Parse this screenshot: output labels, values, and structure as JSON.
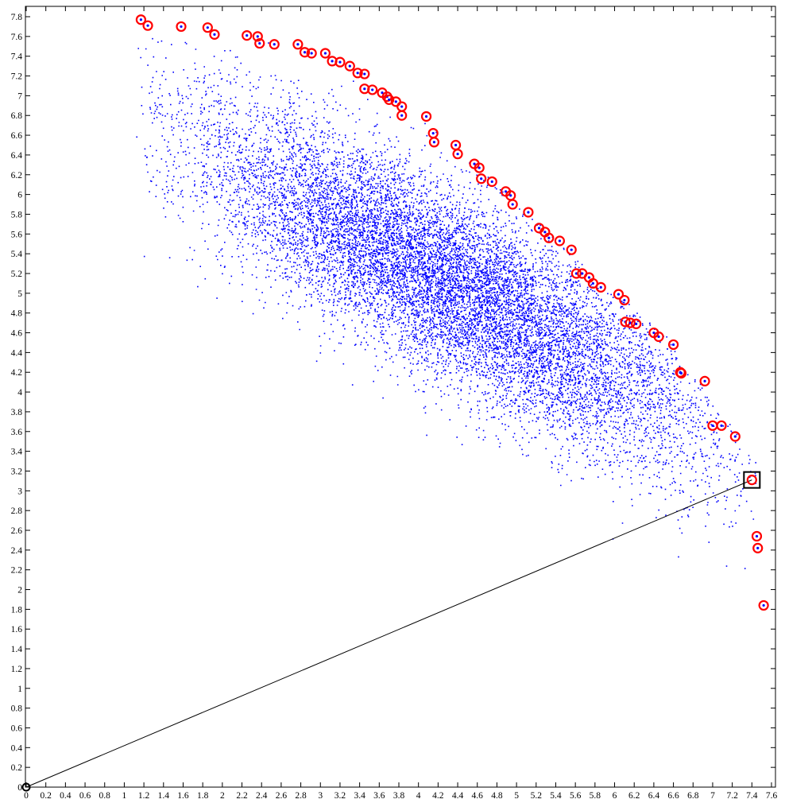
{
  "chart_data": {
    "type": "scatter",
    "title": "",
    "xlabel": "",
    "ylabel": "",
    "xlim": [
      0,
      7.6
    ],
    "ylim": [
      0,
      7.9
    ],
    "grid": false,
    "legend": "none",
    "x_ticks": [
      "0",
      "0.2",
      "0.4",
      "0.6",
      "0.8",
      "1",
      "1.2",
      "1.4",
      "1.6",
      "1.8",
      "2",
      "2.2",
      "2.4",
      "2.6",
      "2.8",
      "3",
      "3.2",
      "3.4",
      "3.6",
      "3.8",
      "4",
      "4.2",
      "4.4",
      "4.6",
      "4.8",
      "5",
      "5.2",
      "5.4",
      "5.6",
      "5.8",
      "6",
      "6.2",
      "6.4",
      "6.6",
      "6.8",
      "7",
      "7.2",
      "7.4",
      "7.6"
    ],
    "y_ticks": [
      "0",
      "0.2",
      "0.4",
      "0.6",
      "0.8",
      "1",
      "1.2",
      "1.4",
      "1.6",
      "1.8",
      "2",
      "2.2",
      "2.4",
      "2.6",
      "2.8",
      "3",
      "3.2",
      "3.4",
      "3.6",
      "3.8",
      "4",
      "4.2",
      "4.4",
      "4.6",
      "4.8",
      "5",
      "5.2",
      "5.4",
      "5.6",
      "5.8",
      "6",
      "6.2",
      "6.4",
      "6.6",
      "6.8",
      "7",
      "7.2",
      "7.4",
      "7.6",
      "7.8"
    ],
    "colors": {
      "cloud": "#0000ff",
      "frontier": "#ff0000",
      "selected": "#000000",
      "line": "#000000",
      "origin": "#000000"
    },
    "cloud_description": {
      "approx_points": 12000,
      "mean": [
        4.3,
        5.1
      ],
      "principal_axis_slope": -0.6,
      "upper_bound_curve": [
        [
          1.15,
          7.72
        ],
        [
          2.5,
          7.55
        ],
        [
          3.5,
          7.15
        ],
        [
          4.5,
          6.4
        ],
        [
          5.5,
          5.45
        ],
        [
          6.5,
          4.6
        ],
        [
          7.3,
          3.5
        ]
      ]
    },
    "frontier_points": [
      [
        1.17,
        7.77
      ],
      [
        1.24,
        7.71
      ],
      [
        1.58,
        7.7
      ],
      [
        1.85,
        7.69
      ],
      [
        1.92,
        7.62
      ],
      [
        2.25,
        7.61
      ],
      [
        2.36,
        7.6
      ],
      [
        2.38,
        7.53
      ],
      [
        2.53,
        7.52
      ],
      [
        2.77,
        7.52
      ],
      [
        2.84,
        7.44
      ],
      [
        2.91,
        7.43
      ],
      [
        3.05,
        7.43
      ],
      [
        3.12,
        7.35
      ],
      [
        3.2,
        7.34
      ],
      [
        3.3,
        7.3
      ],
      [
        3.38,
        7.23
      ],
      [
        3.45,
        7.22
      ],
      [
        3.45,
        7.07
      ],
      [
        3.53,
        7.06
      ],
      [
        3.63,
        7.03
      ],
      [
        3.68,
        6.99
      ],
      [
        3.7,
        6.96
      ],
      [
        3.77,
        6.94
      ],
      [
        3.83,
        6.89
      ],
      [
        3.83,
        6.8
      ],
      [
        4.08,
        6.79
      ],
      [
        4.15,
        6.62
      ],
      [
        4.16,
        6.53
      ],
      [
        4.38,
        6.5
      ],
      [
        4.4,
        6.41
      ],
      [
        4.57,
        6.31
      ],
      [
        4.62,
        6.27
      ],
      [
        4.64,
        6.16
      ],
      [
        4.75,
        6.13
      ],
      [
        4.89,
        6.03
      ],
      [
        4.94,
        5.99
      ],
      [
        4.96,
        5.9
      ],
      [
        5.12,
        5.82
      ],
      [
        5.23,
        5.66
      ],
      [
        5.29,
        5.62
      ],
      [
        5.33,
        5.56
      ],
      [
        5.44,
        5.53
      ],
      [
        5.56,
        5.44
      ],
      [
        5.61,
        5.2
      ],
      [
        5.67,
        5.2
      ],
      [
        5.74,
        5.16
      ],
      [
        5.78,
        5.1
      ],
      [
        5.86,
        5.06
      ],
      [
        6.04,
        4.99
      ],
      [
        6.1,
        4.93
      ],
      [
        6.11,
        4.71
      ],
      [
        6.16,
        4.7
      ],
      [
        6.22,
        4.69
      ],
      [
        6.4,
        4.6
      ],
      [
        6.45,
        4.56
      ],
      [
        6.6,
        4.48
      ],
      [
        6.67,
        4.2
      ],
      [
        6.68,
        4.19
      ],
      [
        6.92,
        4.11
      ],
      [
        7.0,
        3.66
      ],
      [
        7.09,
        3.66
      ],
      [
        7.23,
        3.55
      ],
      [
        7.45,
        2.54
      ],
      [
        7.46,
        2.42
      ],
      [
        7.52,
        1.84
      ]
    ],
    "selected_point": [
      7.4,
      3.11
    ],
    "origin_point": [
      0,
      0
    ],
    "reference_line": [
      [
        0,
        0
      ],
      [
        7.4,
        3.11
      ]
    ]
  }
}
